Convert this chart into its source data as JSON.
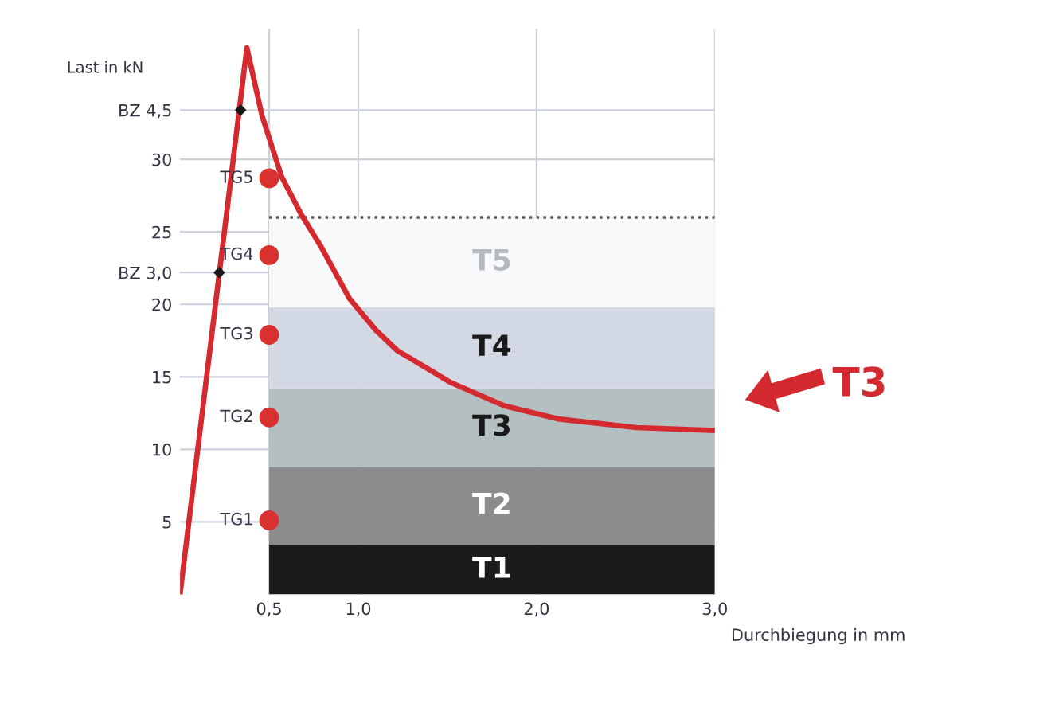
{
  "chart_data": {
    "type": "line",
    "xlabel": "Durchbiegung in mm",
    "ylabel": "Last in kN",
    "xlim": [
      0,
      3.0
    ],
    "ylim": [
      0,
      39
    ],
    "xticks": [
      {
        "value": 0.5,
        "label": "0,5"
      },
      {
        "value": 1.0,
        "label": "1,0"
      },
      {
        "value": 2.0,
        "label": "2,0"
      },
      {
        "value": 3.0,
        "label": "3,0"
      }
    ],
    "yticks": [
      5,
      10,
      15,
      20,
      25,
      30,
      {
        "value": 22.2,
        "label": "BZ 3,0"
      },
      {
        "value": 33.4,
        "label": "BZ 4,5"
      }
    ],
    "grid": true,
    "stacked": true,
    "series": [
      {
        "name": "T1",
        "type": "area",
        "color": "#1c1a1a",
        "x": [
          0.5,
          3.0
        ],
        "values": [
          3.4,
          3.4
        ]
      },
      {
        "name": "T2",
        "type": "area",
        "color": "#8c8c8e",
        "x": [
          0.5,
          3.0
        ],
        "values": [
          5.4,
          5.4
        ]
      },
      {
        "name": "T3",
        "type": "area",
        "color": "#b4bfc2",
        "x": [
          0.5,
          3.0
        ],
        "values": [
          5.4,
          5.4
        ]
      },
      {
        "name": "T4",
        "type": "area",
        "color": "#d3d9e4",
        "x": [
          0.5,
          3.0
        ],
        "values": [
          5.6,
          5.6
        ]
      },
      {
        "name": "T5",
        "type": "area",
        "color": "#f8f9fb",
        "line_style": "dotted",
        "x": [
          0.5,
          3.0
        ],
        "values": [
          6.2,
          6.2
        ]
      },
      {
        "color": "#d42a2f",
        "marker": "none",
        "line_style": "solid",
        "x": [
          0,
          0.375,
          0.46,
          0.57,
          0.68,
          0.79,
          0.95,
          1.1,
          1.22,
          1.52,
          1.82,
          2.12,
          2.56,
          3.0
        ],
        "values": [
          0,
          37.7,
          33.0,
          28.8,
          26.2,
          24.0,
          20.4,
          18.2,
          16.8,
          14.6,
          13.0,
          12.1,
          11.5,
          11.3
        ]
      },
      {
        "type": "scatter",
        "color": "#d93030",
        "marker": "circle",
        "x": [
          0.5,
          0.5,
          0.5,
          0.5,
          0.5
        ],
        "values": [
          5.1,
          12.2,
          17.9,
          23.4,
          28.7
        ],
        "value_labels": [
          "TG1",
          "TG2",
          "TG3",
          "TG4",
          "TG5"
        ]
      },
      {
        "type": "scatter",
        "color": "#1a1a1a",
        "marker": "diamond",
        "x": [
          0.22,
          0.34
        ],
        "values": [
          22.2,
          33.4
        ]
      }
    ],
    "annotations": [
      "T3"
    ]
  }
}
